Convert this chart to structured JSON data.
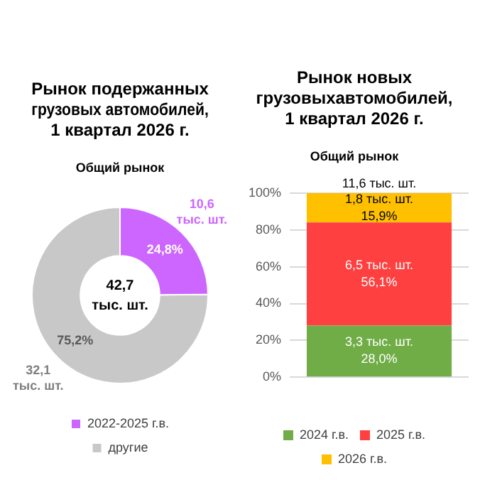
{
  "chart_data": [
    {
      "type": "donut",
      "title": "Рынок подержанных\nгрузовых автомобилей,\n1 квартал 2026 г.",
      "subtitle": "Общий рынок",
      "categories": [
        "2022-2025 г.в.",
        "другие"
      ],
      "values": [
        10.6,
        32.1
      ],
      "colors": [
        "#cc66ff",
        "#c8c8c8"
      ],
      "value_labels": [
        "10,6\nтыс. шт.",
        "32,1\nтыс. шт."
      ],
      "annotations": [
        {
          "text": "24,8%",
          "x": "2022-2025 г.в."
        },
        {
          "text": "75,2%",
          "x": "другие"
        },
        "42,7\nтыс. шт."
      ],
      "legend": "bottom"
    },
    {
      "type": "bar",
      "stacked": true,
      "title": "Рынок новых\nгрузовыхавтомобилей,\n1 квартал 2026 г.",
      "subtitle": "Общий рынок",
      "categories": [
        null
      ],
      "series": [
        {
          "name": "2024 г.в.",
          "color": "#70ad47",
          "values": [
            28.0
          ],
          "value_labels": [
            "3,3 тыс. шт.\n28,0%"
          ]
        },
        {
          "name": "2025 г.в.",
          "color": "#ff4040",
          "values": [
            56.1
          ],
          "value_labels": [
            "6,5 тыс. шт.\n56,1%"
          ]
        },
        {
          "name": "2026 г.в.",
          "color": "#ffc000",
          "values": [
            15.9
          ],
          "value_labels": [
            "1,8 тыс. шт.\n15,9%"
          ]
        }
      ],
      "annotations": [
        {
          "text": "11,6 тыс. шт.",
          "y": 100
        }
      ],
      "ylim": [
        0,
        100
      ],
      "yticks": [
        {
          "value": 0,
          "label": "0%"
        },
        {
          "value": 20,
          "label": "20%"
        },
        {
          "value": 40,
          "label": "40%"
        },
        {
          "value": 60,
          "label": "60%"
        },
        {
          "value": 80,
          "label": "80%"
        },
        {
          "value": 100,
          "label": "100%"
        }
      ],
      "grid": "y",
      "legend": "bottom"
    }
  ]
}
